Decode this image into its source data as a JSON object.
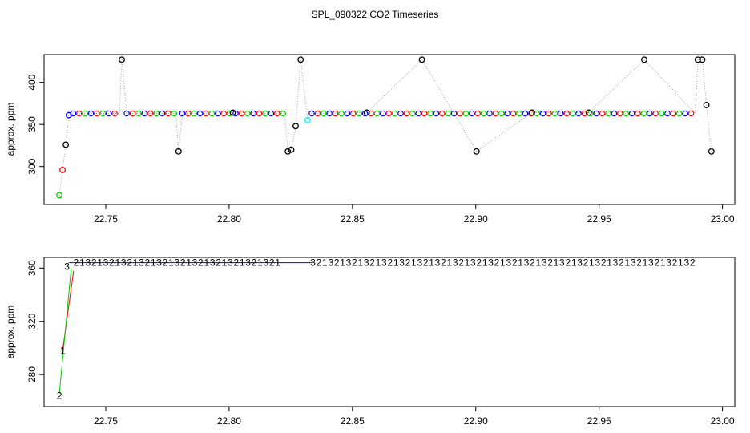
{
  "title": "SPL_090322  CO2 Timeseries",
  "colors": {
    "c1": "#ff0000",
    "c2": "#00cc00",
    "c3": "#0000ff",
    "c4": "#00ffff",
    "black": "#000000",
    "connector": "#a0a0a0"
  },
  "chart_data": [
    {
      "type": "scatter",
      "ylabel": "approx. ppm",
      "xlabel": "",
      "xlim": [
        22.725,
        23.005
      ],
      "ylim": [
        255,
        433
      ],
      "xticks": [
        22.75,
        22.8,
        22.85,
        22.9,
        22.95,
        23.0
      ],
      "xtick_labels": [
        "22.75",
        "22.80",
        "22.85",
        "22.90",
        "22.95",
        "23.00"
      ],
      "yticks": [
        300,
        350,
        400
      ],
      "ytick_labels": [
        "300",
        "350",
        "400"
      ],
      "marker": "open circle",
      "baseline_ppm": 363,
      "points": [
        {
          "x": 22.7312,
          "y": 266,
          "c": "c2"
        },
        {
          "x": 22.7325,
          "y": 296,
          "c": "c1"
        },
        {
          "x": 22.7338,
          "y": 326,
          "c": "black"
        },
        {
          "x": 22.735,
          "y": 361,
          "c": "c3"
        },
        {
          "x": 22.7565,
          "y": 427,
          "c": "black"
        },
        {
          "x": 22.7795,
          "y": 318,
          "c": "black"
        },
        {
          "x": 22.8015,
          "y": 364,
          "c": "black"
        },
        {
          "x": 22.8238,
          "y": 318,
          "c": "black"
        },
        {
          "x": 22.8252,
          "y": 320,
          "c": "black"
        },
        {
          "x": 22.827,
          "y": 348,
          "c": "black"
        },
        {
          "x": 22.829,
          "y": 427,
          "c": "black"
        },
        {
          "x": 22.8318,
          "y": 355,
          "c": "c4"
        },
        {
          "x": 22.8558,
          "y": 364,
          "c": "black"
        },
        {
          "x": 22.8782,
          "y": 427,
          "c": "black"
        },
        {
          "x": 22.9003,
          "y": 318,
          "c": "black"
        },
        {
          "x": 22.9228,
          "y": 364,
          "c": "black"
        },
        {
          "x": 22.9458,
          "y": 364,
          "c": "black"
        },
        {
          "x": 22.9683,
          "y": 427,
          "c": "black"
        },
        {
          "x": 22.99,
          "y": 427,
          "c": "black"
        },
        {
          "x": 22.9918,
          "y": 427,
          "c": "black"
        },
        {
          "x": 22.9935,
          "y": 373,
          "c": "black"
        },
        {
          "x": 22.9955,
          "y": 318,
          "c": "black"
        }
      ],
      "dense_segments": [
        {
          "x_start": 22.7368,
          "x_end": 22.7555,
          "y": 363
        },
        {
          "x_start": 22.7585,
          "x_end": 22.7785,
          "y": 363
        },
        {
          "x_start": 22.781,
          "x_end": 22.8225,
          "y": 363
        },
        {
          "x_start": 22.8335,
          "x_end": 22.989,
          "y": 363
        }
      ]
    },
    {
      "type": "line",
      "ylabel": "approx. ppm",
      "xlabel": "",
      "xlim": [
        22.725,
        23.005
      ],
      "ylim": [
        256,
        368
      ],
      "xticks": [
        22.75,
        22.8,
        22.85,
        22.9,
        22.95,
        23.0
      ],
      "xtick_labels": [
        "22.75",
        "22.80",
        "22.85",
        "22.90",
        "22.95",
        "23.00"
      ],
      "yticks": [
        280,
        320,
        360
      ],
      "ytick_labels": [
        "280",
        "320",
        "360"
      ],
      "markers": "digits 1-4",
      "series": [
        {
          "color": "c1",
          "points": [
            [
              22.7325,
              298
            ],
            [
              22.737,
              358
            ]
          ]
        },
        {
          "color": "c2",
          "points": [
            [
              22.7312,
              266
            ],
            [
              22.736,
              360
            ]
          ]
        },
        {
          "color": "c3",
          "points": [
            [
              22.735,
              364
            ],
            [
              22.738,
              364
            ],
            [
              22.823,
              364
            ],
            [
              22.8335,
              364
            ]
          ]
        }
      ],
      "labels": [
        {
          "x": 22.7312,
          "y": 264,
          "text": "2",
          "c": "c2"
        },
        {
          "x": 22.7325,
          "y": 298,
          "text": "1",
          "c": "c1"
        },
        {
          "x": 22.7343,
          "y": 361,
          "text": "3",
          "c": "c3"
        }
      ],
      "digit_runs": [
        {
          "x_start": 22.738,
          "x_end": 22.822,
          "y": 364,
          "pattern": "213213213213"
        },
        {
          "x_start": 22.834,
          "x_end": 22.9885,
          "y": 364,
          "pattern": "321321321321"
        }
      ]
    }
  ]
}
